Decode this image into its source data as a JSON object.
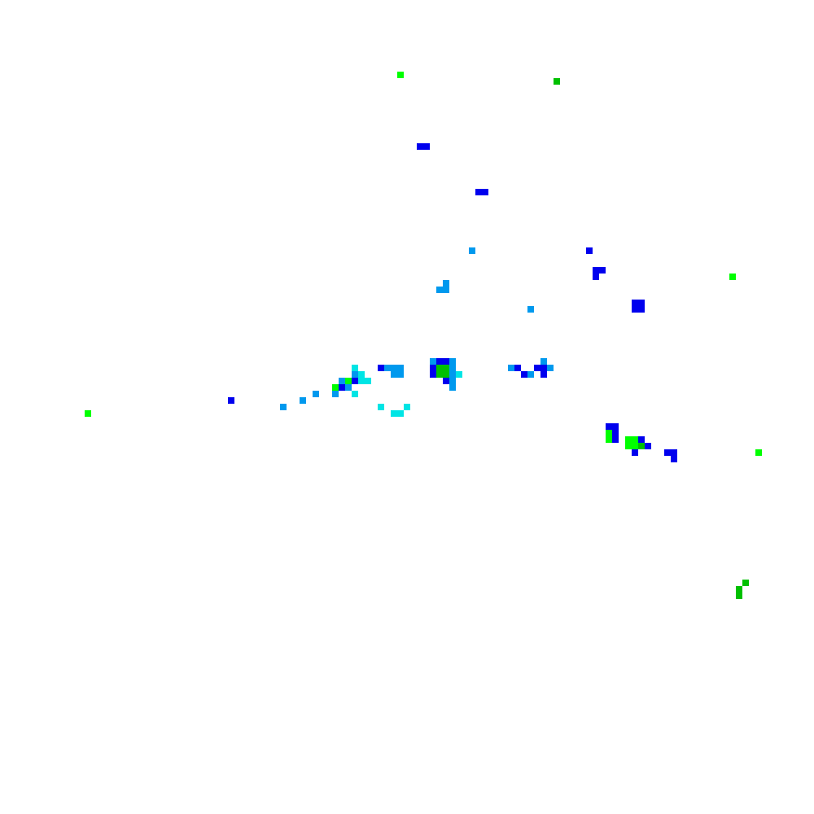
{
  "palette": {
    "b": "#0000ee",
    "lb": "#0099ee",
    "c": "#00e5e5",
    "g": "#00ff00",
    "dg": "#00c000"
  },
  "cells": [
    [
      61,
      11,
      "g"
    ],
    [
      85,
      12,
      "dg"
    ],
    [
      64,
      22,
      "b"
    ],
    [
      65,
      22,
      "b"
    ],
    [
      73,
      29,
      "b"
    ],
    [
      74,
      29,
      "b"
    ],
    [
      90,
      38,
      "b"
    ],
    [
      72,
      38,
      "lb"
    ],
    [
      91,
      41,
      "b"
    ],
    [
      92,
      41,
      "b"
    ],
    [
      91,
      42,
      "b"
    ],
    [
      112,
      42,
      "g"
    ],
    [
      68,
      43,
      "lb"
    ],
    [
      67,
      44,
      "lb"
    ],
    [
      68,
      44,
      "lb"
    ],
    [
      81,
      47,
      "lb"
    ],
    [
      97,
      46,
      "b"
    ],
    [
      98,
      46,
      "b"
    ],
    [
      97,
      47,
      "b"
    ],
    [
      98,
      47,
      "b"
    ],
    [
      35,
      61,
      "b"
    ],
    [
      43,
      62,
      "lb"
    ],
    [
      46,
      61,
      "lb"
    ],
    [
      48,
      60,
      "lb"
    ],
    [
      13,
      63,
      "g"
    ],
    [
      116,
      69,
      "g"
    ],
    [
      114,
      89,
      "dg"
    ],
    [
      113,
      90,
      "dg"
    ],
    [
      113,
      91,
      "dg"
    ],
    [
      54,
      56,
      "c"
    ],
    [
      54,
      57,
      "lb"
    ],
    [
      55,
      57,
      "c"
    ],
    [
      52,
      58,
      "lb"
    ],
    [
      53,
      58,
      "g"
    ],
    [
      54,
      58,
      "b"
    ],
    [
      55,
      58,
      "c"
    ],
    [
      56,
      58,
      "c"
    ],
    [
      51,
      59,
      "g"
    ],
    [
      52,
      59,
      "b"
    ],
    [
      53,
      59,
      "lb"
    ],
    [
      51,
      60,
      "lb"
    ],
    [
      54,
      60,
      "c"
    ],
    [
      58,
      56,
      "b"
    ],
    [
      59,
      56,
      "lb"
    ],
    [
      60,
      56,
      "lb"
    ],
    [
      61,
      56,
      "lb"
    ],
    [
      60,
      57,
      "lb"
    ],
    [
      61,
      57,
      "lb"
    ],
    [
      58,
      62,
      "c"
    ],
    [
      62,
      62,
      "c"
    ],
    [
      60,
      63,
      "c"
    ],
    [
      61,
      63,
      "c"
    ],
    [
      66,
      55,
      "lb"
    ],
    [
      67,
      55,
      "b"
    ],
    [
      68,
      55,
      "b"
    ],
    [
      69,
      55,
      "lb"
    ],
    [
      69,
      56,
      "lb"
    ],
    [
      69,
      57,
      "lb"
    ],
    [
      69,
      58,
      "lb"
    ],
    [
      69,
      59,
      "lb"
    ],
    [
      66,
      56,
      "b"
    ],
    [
      66,
      57,
      "b"
    ],
    [
      67,
      56,
      "dg"
    ],
    [
      68,
      56,
      "dg"
    ],
    [
      67,
      57,
      "dg"
    ],
    [
      68,
      57,
      "dg"
    ],
    [
      70,
      57,
      "c"
    ],
    [
      68,
      58,
      "b"
    ],
    [
      78,
      56,
      "lb"
    ],
    [
      79,
      56,
      "b"
    ],
    [
      80,
      57,
      "b"
    ],
    [
      81,
      57,
      "lb"
    ],
    [
      82,
      56,
      "b"
    ],
    [
      83,
      56,
      "b"
    ],
    [
      83,
      55,
      "lb"
    ],
    [
      84,
      56,
      "lb"
    ],
    [
      83,
      57,
      "b"
    ],
    [
      93,
      65,
      "b"
    ],
    [
      94,
      65,
      "b"
    ],
    [
      94,
      66,
      "b"
    ],
    [
      94,
      67,
      "b"
    ],
    [
      93,
      66,
      "g"
    ],
    [
      93,
      67,
      "g"
    ],
    [
      96,
      67,
      "g"
    ],
    [
      97,
      67,
      "g"
    ],
    [
      96,
      68,
      "g"
    ],
    [
      97,
      68,
      "g"
    ],
    [
      98,
      67,
      "b"
    ],
    [
      98,
      68,
      "dg"
    ],
    [
      99,
      68,
      "b"
    ],
    [
      97,
      69,
      "b"
    ],
    [
      102,
      69,
      "b"
    ],
    [
      103,
      69,
      "b"
    ],
    [
      103,
      70,
      "b"
    ]
  ]
}
